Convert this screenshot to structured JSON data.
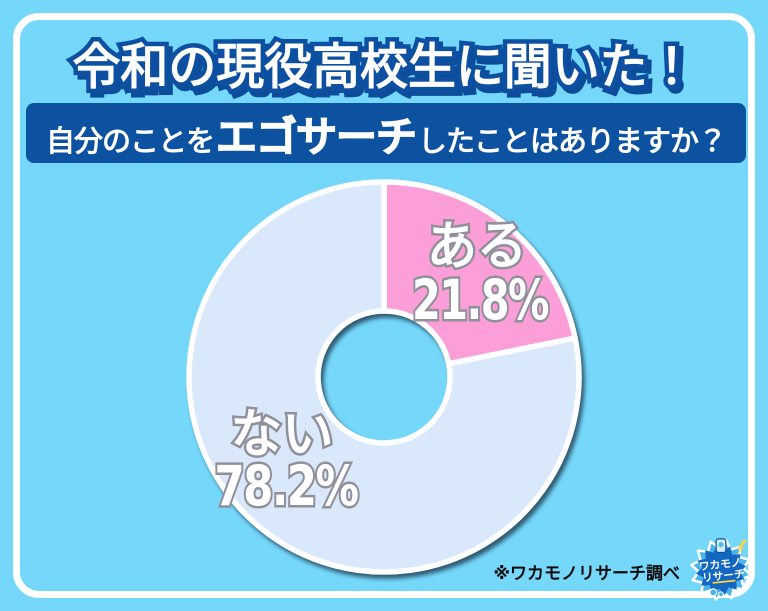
{
  "page": {
    "background_color": "#75d8fb",
    "frame_color": "#ffffff"
  },
  "header": {
    "title": "令和の現役高校生に聞いた！",
    "text_color": "#ffffff",
    "outline_color": "#0d4fa0"
  },
  "question_banner": {
    "prefix": "自分のことを",
    "highlight": "エゴサーチ",
    "suffix": "したことはありますか？",
    "background_color": "#0d51a1",
    "text_color": "#ffffff"
  },
  "chart_data": {
    "type": "pie",
    "donut": true,
    "title": "自分のことをエゴサーチしたことはありますか？",
    "labels": [
      "ある",
      "ない"
    ],
    "values": [
      21.8,
      78.2
    ],
    "value_labels": [
      "21.8%",
      "78.2%"
    ],
    "colors": [
      "#fc9fd8",
      "#d9e8fb"
    ],
    "slice_border_color": "#ffffff",
    "label_outline_color": "#8f9099",
    "start": "top",
    "direction": "clockwise",
    "legend_position": "none"
  },
  "footer": {
    "credit": "※ワカモノリサーチ調べ",
    "logo_line1": "ワカモノ",
    "logo_line2": "リサーチ"
  }
}
